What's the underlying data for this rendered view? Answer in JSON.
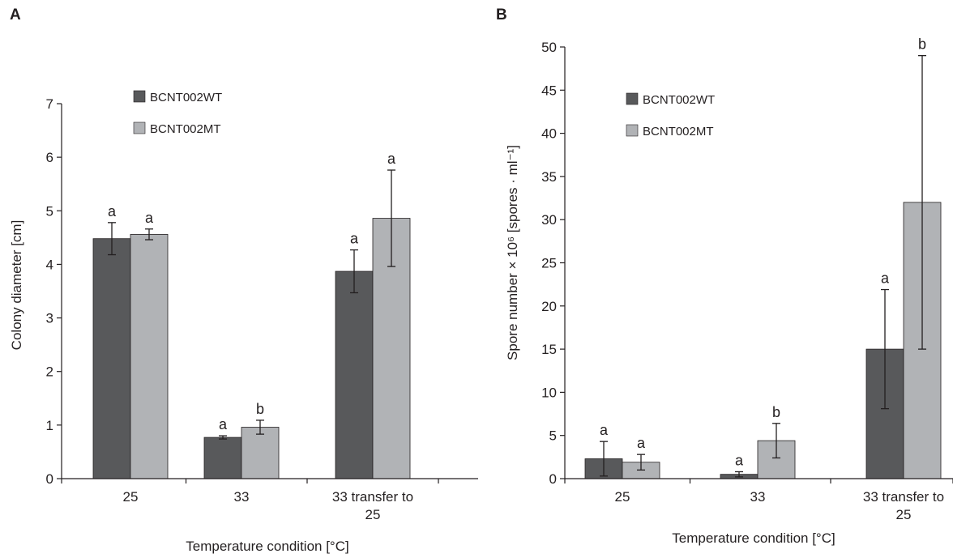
{
  "chart_data": [
    {
      "panel": "A",
      "type": "bar",
      "categories": [
        "25",
        "33",
        "33 transfer to\n25"
      ],
      "xlabel": "Temperature condition [°C]",
      "ylabel": "Colony diameter [cm]",
      "ylim": [
        0,
        7
      ],
      "yticks": [
        0,
        1,
        2,
        3,
        4,
        5,
        6,
        7
      ],
      "legend_position": "top-left",
      "series": [
        {
          "name": "BCNT002WT",
          "color": "#58595b",
          "values": [
            4.48,
            0.77,
            3.87
          ],
          "errors": [
            0.3,
            0.03,
            0.4
          ],
          "significance": [
            "a",
            "a",
            "a"
          ]
        },
        {
          "name": "BCNT002MT",
          "color": "#b1b3b6",
          "values": [
            4.56,
            0.96,
            4.86
          ],
          "errors": [
            0.1,
            0.13,
            0.9
          ],
          "significance": [
            "a",
            "b",
            "a"
          ]
        }
      ]
    },
    {
      "panel": "B",
      "type": "bar",
      "categories": [
        "25",
        "33",
        "33  transfer to\n25"
      ],
      "xlabel": "Temperature condition [°C]",
      "ylabel": "Spore number × 10⁶ [spores · ml⁻¹]",
      "ylim": [
        0,
        50
      ],
      "yticks": [
        0,
        5,
        10,
        15,
        20,
        25,
        30,
        35,
        40,
        45,
        50
      ],
      "legend_position": "top-left",
      "series": [
        {
          "name": "BCNT002WT",
          "color": "#58595b",
          "values": [
            2.3,
            0.5,
            15.0
          ],
          "errors": [
            2.0,
            0.3,
            6.9
          ],
          "significance": [
            "a",
            "a",
            "a"
          ]
        },
        {
          "name": "BCNT002MT",
          "color": "#b1b3b6",
          "values": [
            1.9,
            4.4,
            32.0
          ],
          "errors": [
            0.9,
            2.0,
            17.0
          ],
          "significance": [
            "a",
            "b",
            "b"
          ]
        }
      ]
    }
  ]
}
